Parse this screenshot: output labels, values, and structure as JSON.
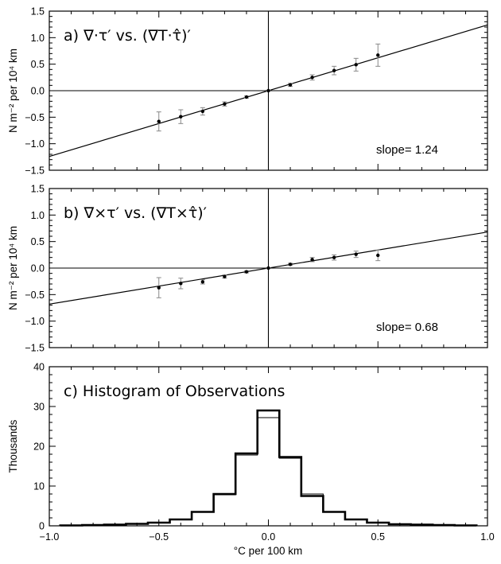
{
  "chart_data": [
    {
      "type": "scatter",
      "panel_label": "a)",
      "title": "∇·τ′ vs. (∇T·τ̂)′",
      "ylabel": "N m⁻² per 10⁴ km",
      "xlim": [
        -1.0,
        1.0
      ],
      "ylim": [
        -1.5,
        1.5
      ],
      "yticks": [
        "−1.5",
        "−1.0",
        "−0.5",
        "0.0",
        "0.5",
        "1.0",
        "1.5"
      ],
      "x": [
        -0.5,
        -0.4,
        -0.3,
        -0.2,
        -0.1,
        0.0,
        0.1,
        0.2,
        0.3,
        0.4,
        0.5
      ],
      "y": [
        -0.58,
        -0.49,
        -0.39,
        -0.25,
        -0.12,
        0.0,
        0.11,
        0.25,
        0.38,
        0.49,
        0.67
      ],
      "err": [
        0.18,
        0.13,
        0.07,
        0.04,
        0.02,
        0.01,
        0.03,
        0.05,
        0.08,
        0.12,
        0.21
      ],
      "fit": {
        "slope": 1.24,
        "intercept": 0.0
      },
      "slope_label": "slope= 1.24",
      "grid": false
    },
    {
      "type": "scatter",
      "panel_label": "b)",
      "title": "∇×τ′ vs. (∇T×τ̂)′",
      "ylabel": "N m⁻² per 10⁴ km",
      "xlim": [
        -1.0,
        1.0
      ],
      "ylim": [
        -1.5,
        1.5
      ],
      "yticks": [
        "−1.5",
        "−1.0",
        "−0.5",
        "0.0",
        "0.5",
        "1.0",
        "1.5"
      ],
      "x": [
        -0.5,
        -0.4,
        -0.3,
        -0.2,
        -0.1,
        0.0,
        0.1,
        0.2,
        0.3,
        0.4,
        0.5
      ],
      "y": [
        -0.37,
        -0.29,
        -0.26,
        -0.16,
        -0.07,
        0.0,
        0.07,
        0.16,
        0.2,
        0.26,
        0.24
      ],
      "err": [
        0.19,
        0.1,
        0.04,
        0.03,
        0.02,
        0.01,
        0.02,
        0.04,
        0.05,
        0.06,
        0.1
      ],
      "fit": {
        "slope": 0.68,
        "intercept": 0.0
      },
      "slope_label": "slope= 0.68",
      "grid": false
    },
    {
      "type": "histogram",
      "panel_label": "c)",
      "title": "Histogram of Observations",
      "ylabel": "Thousands",
      "xlabel": "°C per 100 km",
      "xlim": [
        -1.0,
        1.0
      ],
      "ylim": [
        0,
        40
      ],
      "xticks": [
        "−1.0",
        "−0.5",
        "0.0",
        "0.5",
        "1.0"
      ],
      "yticks": [
        "0",
        "10",
        "20",
        "30",
        "40"
      ],
      "bin_edges": [
        -0.95,
        -0.85,
        -0.75,
        -0.65,
        -0.55,
        -0.45,
        -0.35,
        -0.25,
        -0.15,
        -0.05,
        0.05,
        0.15,
        0.25,
        0.35,
        0.45,
        0.55,
        0.65,
        0.75,
        0.85,
        0.95
      ],
      "series": [
        {
          "style": "thick",
          "values": [
            0.1,
            0.2,
            0.3,
            0.5,
            0.8,
            1.6,
            3.5,
            8.0,
            18.2,
            29.0,
            17.3,
            7.5,
            3.5,
            1.6,
            0.8,
            0.4,
            0.3,
            0.2,
            0.1
          ]
        },
        {
          "style": "thin",
          "values": [
            0.1,
            0.2,
            0.3,
            0.5,
            0.8,
            1.6,
            3.5,
            7.8,
            17.8,
            27.2,
            17.0,
            8.0,
            3.5,
            1.6,
            0.8,
            0.4,
            0.3,
            0.2,
            0.1
          ]
        }
      ],
      "grid": false
    }
  ]
}
